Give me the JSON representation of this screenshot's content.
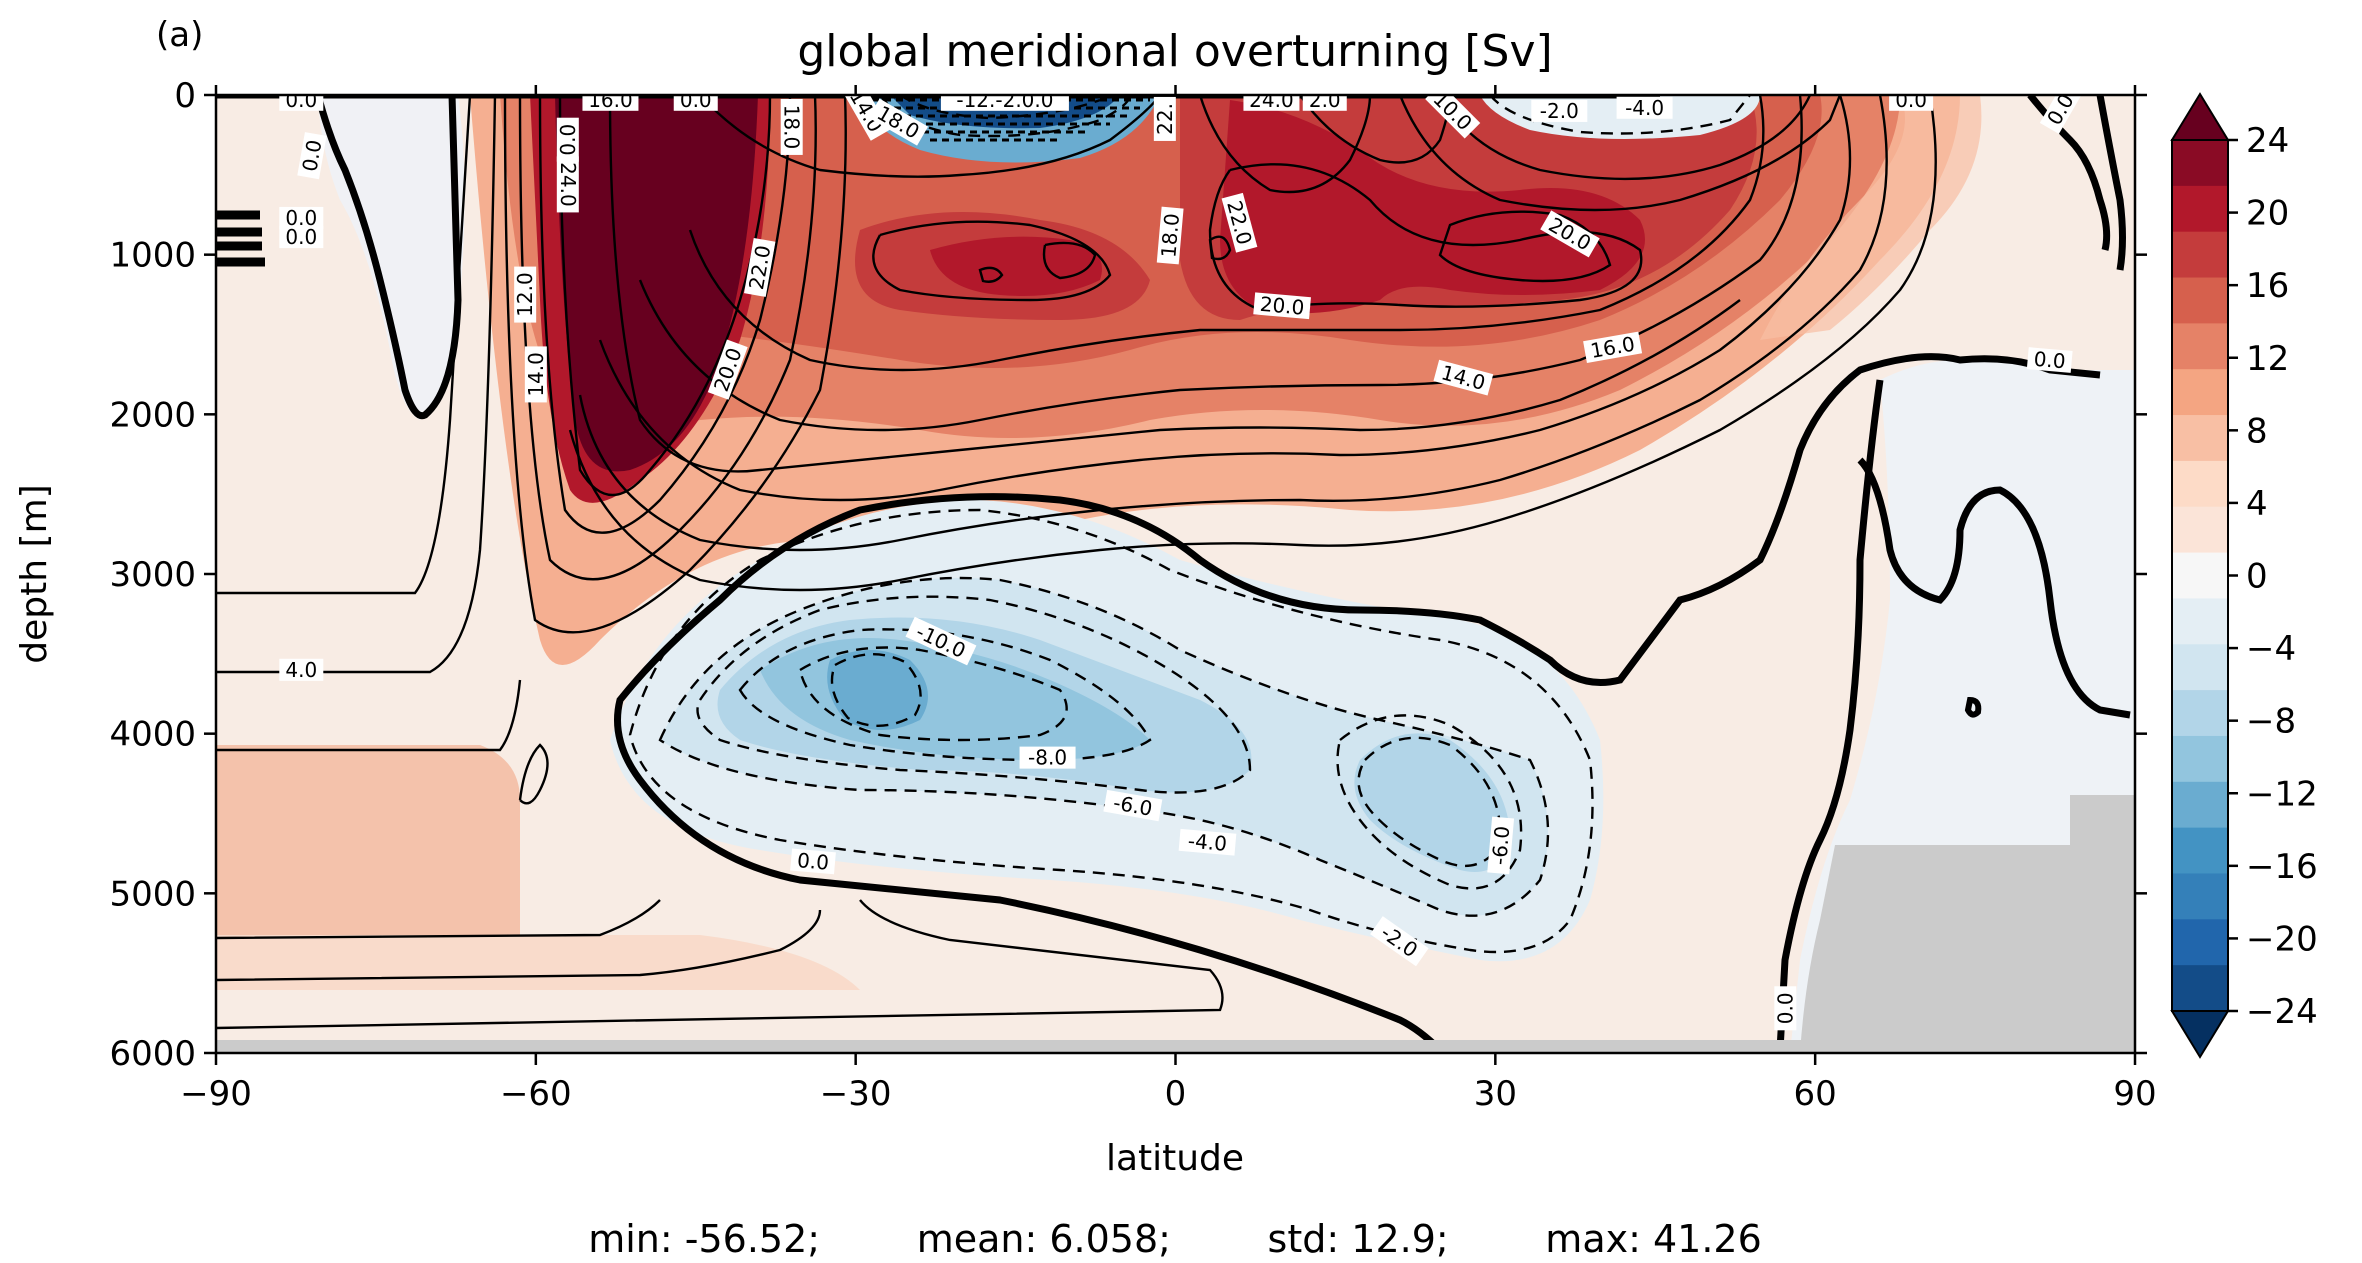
{
  "panel_label": "(a)",
  "stats_line": "min: -56.52;        mean: 6.058;        std: 12.9;        max: 41.26",
  "chart_data": {
    "type": "contour",
    "title": "global meridional overturning [Sv]",
    "xlabel": "latitude",
    "ylabel": "depth [m]",
    "xlim": [
      -90,
      90
    ],
    "ylim": [
      6000,
      0
    ],
    "xticks": [
      -90,
      -60,
      -30,
      0,
      30,
      60,
      90
    ],
    "xtick_labels": [
      "−90",
      "−60",
      "−30",
      "0",
      "30",
      "60",
      "90"
    ],
    "yticks": [
      0,
      1000,
      2000,
      3000,
      4000,
      5000,
      6000
    ],
    "ytick_labels": [
      "0",
      "1000",
      "2000",
      "3000",
      "4000",
      "5000",
      "6000"
    ],
    "colorbar": {
      "min": -24,
      "max": 24,
      "step": 2,
      "extend": "both",
      "ticks": [
        24,
        20,
        16,
        12,
        8,
        4,
        0,
        -4,
        -8,
        -12,
        -16,
        -20,
        -24
      ],
      "tick_labels": [
        "24",
        "20",
        "16",
        "12",
        "8",
        "4",
        "0",
        "−4",
        "−8",
        "−12",
        "−16",
        "−20",
        "−24"
      ],
      "colors": [
        "#053061",
        "#134c88",
        "#2166ac",
        "#3480b9",
        "#4393c3",
        "#6aacd0",
        "#92c5de",
        "#b2d5e8",
        "#d1e5f0",
        "#e4eef4",
        "#f7f7f7",
        "#fbe4d8",
        "#fddbc7",
        "#f8bfa4",
        "#f4a582",
        "#e58267",
        "#d6604d",
        "#c43c3c",
        "#b2182b",
        "#8a0b25",
        "#67001f"
      ]
    },
    "contour_labels": [
      {
        "text": "0.0",
        "lat": -82,
        "depth": 30
      },
      {
        "text": "0.0",
        "lat": -81,
        "depth": 380,
        "rot": -80
      },
      {
        "text": "0.0",
        "lat": -82,
        "depth": 770
      },
      {
        "text": "0.0",
        "lat": -82,
        "depth": 890
      },
      {
        "text": "12.0",
        "lat": -61,
        "depth": 1250,
        "rot": -90
      },
      {
        "text": "14.0",
        "lat": -60,
        "depth": 1750,
        "rot": -90
      },
      {
        "text": "4.0",
        "lat": -82,
        "depth": 3600
      },
      {
        "text": "0.0",
        "lat": -57,
        "depth": 280,
        "rot": -90
      },
      {
        "text": "24.0",
        "lat": -57,
        "depth": 560,
        "rot": 90
      },
      {
        "text": "16.0",
        "lat": -53,
        "depth": 30
      },
      {
        "text": "0.0",
        "lat": -45,
        "depth": 30
      },
      {
        "text": "18.0",
        "lat": -36,
        "depth": 200,
        "rot": 90
      },
      {
        "text": "22.0",
        "lat": -39,
        "depth": 1080,
        "rot": -80
      },
      {
        "text": "20.0",
        "lat": -42,
        "depth": 1720,
        "rot": -70
      },
      {
        "text": "14.0",
        "lat": -29,
        "depth": 100,
        "rot": 60
      },
      {
        "text": "18.0",
        "lat": -26,
        "depth": 170,
        "rot": 30
      },
      {
        "text": "-12.-2.0.0",
        "lat": -16,
        "depth": 30
      },
      {
        "text": "22.",
        "lat": -1,
        "depth": 150,
        "rot": -90
      },
      {
        "text": "18.0",
        "lat": -0.5,
        "depth": 880,
        "rot": -85
      },
      {
        "text": "22.0",
        "lat": 6,
        "depth": 800,
        "rot": 75
      },
      {
        "text": "24.0",
        "lat": 9,
        "depth": 30
      },
      {
        "text": "2.0",
        "lat": 14,
        "depth": 30
      },
      {
        "text": "10.0",
        "lat": 26,
        "depth": 100,
        "rot": 45
      },
      {
        "text": "-2.0",
        "lat": 36,
        "depth": 100
      },
      {
        "text": "-4.0",
        "lat": 44,
        "depth": 80
      },
      {
        "text": "0.0",
        "lat": 69,
        "depth": 30
      },
      {
        "text": "0.0",
        "lat": 83,
        "depth": 90,
        "rot": -60
      },
      {
        "text": "20.0",
        "lat": 37,
        "depth": 870,
        "rot": 30
      },
      {
        "text": "20.0",
        "lat": 10,
        "depth": 1320,
        "rot": 5
      },
      {
        "text": "16.0",
        "lat": 41,
        "depth": 1580,
        "rot": -10
      },
      {
        "text": "14.0",
        "lat": 27,
        "depth": 1770,
        "rot": 15
      },
      {
        "text": "0.0",
        "lat": 82,
        "depth": 1660,
        "rot": 5
      },
      {
        "text": "-10.0",
        "lat": -22,
        "depth": 3420,
        "rot": 25
      },
      {
        "text": "-8.0",
        "lat": -12,
        "depth": 4150
      },
      {
        "text": "-6.0",
        "lat": -4,
        "depth": 4450,
        "rot": 10
      },
      {
        "text": "-4.0",
        "lat": 3,
        "depth": 4680,
        "rot": 5
      },
      {
        "text": "0.0",
        "lat": -34,
        "depth": 4800,
        "rot": 5
      },
      {
        "text": "-6.0",
        "lat": 30.5,
        "depth": 4700,
        "rot": -85
      },
      {
        "text": "-2.0",
        "lat": 21,
        "depth": 5300,
        "rot": 35
      },
      {
        "text": "0.0",
        "lat": 57.2,
        "depth": 5720,
        "rot": -90
      }
    ]
  }
}
